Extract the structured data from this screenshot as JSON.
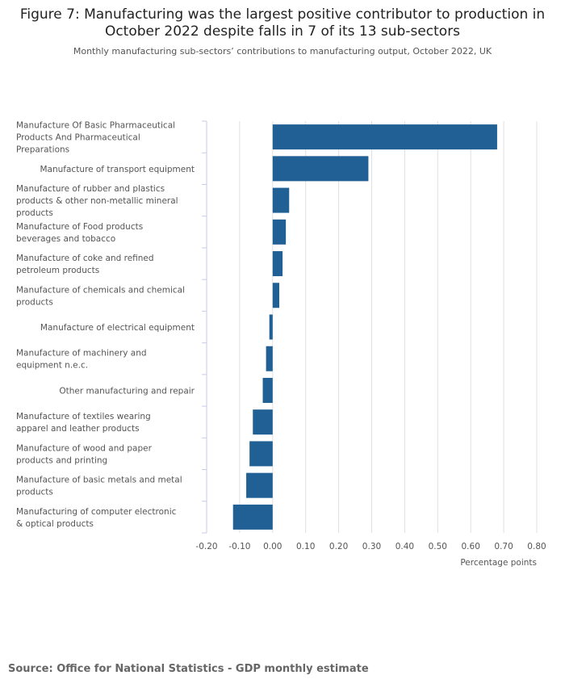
{
  "chart_data": {
    "type": "bar",
    "orientation": "horizontal",
    "title": "Figure 7: Manufacturing was the largest positive contributor to production in October 2022 despite falls in 7 of its 13 sub-sectors",
    "subtitle": "Monthly manufacturing sub-sectors’ contributions to manufacturing output, October 2022, UK",
    "xlabel": "Percentage points",
    "ylabel": "",
    "xlim": [
      -0.2,
      0.8
    ],
    "xticks": [
      -0.2,
      -0.1,
      0,
      0.1,
      0.2,
      0.3,
      0.4,
      0.5,
      0.6,
      0.7,
      0.8
    ],
    "xtick_labels": [
      "-0.20",
      "-0.10",
      "0.00",
      "0.10",
      "0.20",
      "0.30",
      "0.40",
      "0.50",
      "0.60",
      "0.70",
      "0.80"
    ],
    "grid": true,
    "bar_color": "#206095",
    "categories": [
      "Manufacture Of Basic Pharmaceutical Products And Pharmaceutical Preparations",
      "Manufacture of transport equipment",
      "Manufacture of rubber and plastics products & other non-metallic mineral products",
      "Manufacture of Food products beverages and tobacco",
      "Manufacture of coke and refined petroleum products",
      "Manufacture of chemicals and chemical products",
      "Manufacture of electrical equipment",
      "Manufacture of machinery and equipment n.e.c.",
      "Other manufacturing and repair",
      "Manufacture of textiles wearing apparel and leather products",
      "Manufacture of wood and paper products and printing",
      "Manufacture of basic metals and metal products",
      "Manufacturing of computer electronic & optical products"
    ],
    "values": [
      0.68,
      0.29,
      0.05,
      0.04,
      0.03,
      0.02,
      -0.01,
      -0.02,
      -0.03,
      -0.06,
      -0.07,
      -0.08,
      -0.12
    ]
  },
  "source": "Source: Office for National Statistics - GDP monthly estimate"
}
